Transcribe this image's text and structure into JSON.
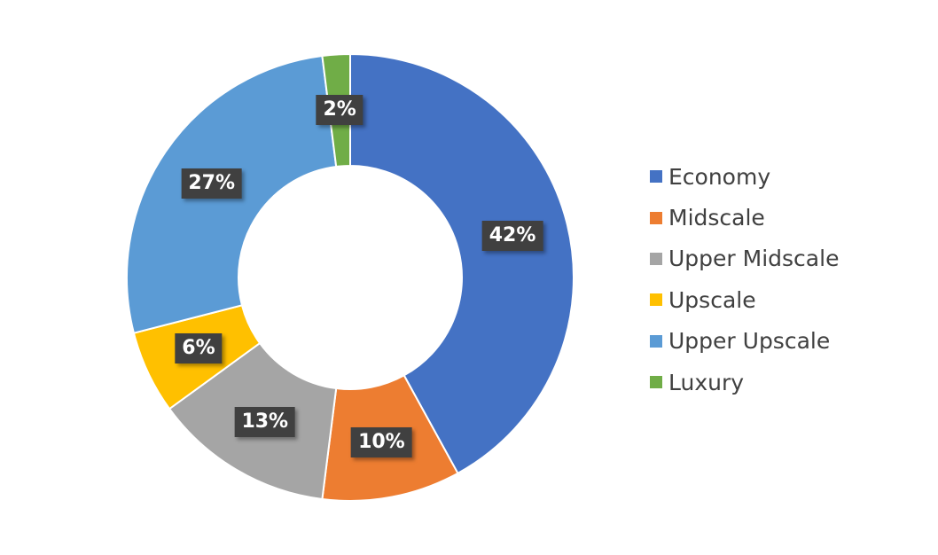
{
  "chart_data": {
    "type": "pie",
    "variant": "donut",
    "title": "",
    "categories": [
      "Economy",
      "Midscale",
      "Upper Midscale",
      "Upscale",
      "Upper Upscale",
      "Luxury"
    ],
    "values": [
      42,
      10,
      13,
      6,
      27,
      2
    ],
    "data_labels": [
      "42%",
      "10%",
      "13%",
      "6%",
      "27%",
      "2%"
    ],
    "colors": [
      "#4472C4",
      "#ED7D31",
      "#A5A5A5",
      "#FFC000",
      "#5B9BD5",
      "#70AD47"
    ],
    "start_angle_deg": 0,
    "direction": "clockwise",
    "legend_position": "right",
    "data_label_style": {
      "background": "#404040",
      "color": "#FFFFFF"
    }
  }
}
